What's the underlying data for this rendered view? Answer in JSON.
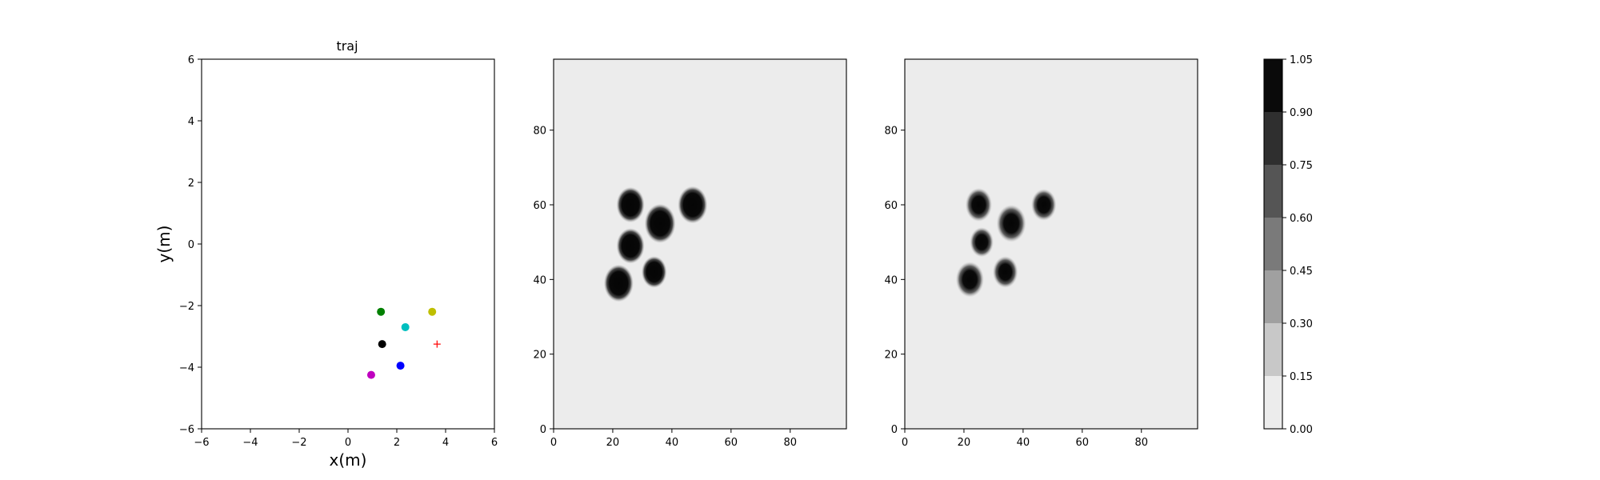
{
  "chart_data": [
    {
      "type": "scatter",
      "title": "traj",
      "xlabel": "x(m)",
      "ylabel": "y(m)",
      "xlim": [
        -6,
        6
      ],
      "ylim": [
        -6,
        6
      ],
      "xticks": [
        -6,
        -4,
        -2,
        0,
        2,
        4,
        6
      ],
      "yticks": [
        -6,
        -4,
        -2,
        0,
        2,
        4,
        6
      ],
      "grid": false,
      "points": [
        {
          "x": 1.35,
          "y": -2.2,
          "color": "#008000",
          "marker": "circle"
        },
        {
          "x": 3.45,
          "y": -2.2,
          "color": "#bfbf00",
          "marker": "circle"
        },
        {
          "x": 2.35,
          "y": -2.7,
          "color": "#00bfbf",
          "marker": "circle"
        },
        {
          "x": 1.4,
          "y": -3.25,
          "color": "#000000",
          "marker": "circle"
        },
        {
          "x": 2.15,
          "y": -3.95,
          "color": "#0000ff",
          "marker": "circle"
        },
        {
          "x": 0.95,
          "y": -4.25,
          "color": "#bf00bf",
          "marker": "circle"
        },
        {
          "x": 3.65,
          "y": -3.25,
          "color": "#ff0000",
          "marker": "plus"
        }
      ]
    },
    {
      "type": "heatmap",
      "title": "",
      "xlim": [
        0,
        99
      ],
      "ylim": [
        0,
        99
      ],
      "xticks": [
        0,
        20,
        40,
        60,
        80
      ],
      "yticks": [
        0,
        20,
        40,
        60,
        80
      ],
      "background_value": 0.0,
      "blobs": [
        {
          "x": 26,
          "y": 60,
          "r": 3.8
        },
        {
          "x": 47,
          "y": 60,
          "r": 4.0
        },
        {
          "x": 36,
          "y": 55,
          "r": 4.2
        },
        {
          "x": 26,
          "y": 49,
          "r": 3.8
        },
        {
          "x": 34,
          "y": 42,
          "r": 3.4
        },
        {
          "x": 22,
          "y": 39,
          "r": 4.0
        }
      ]
    },
    {
      "type": "heatmap",
      "title": "",
      "xlim": [
        0,
        99
      ],
      "ylim": [
        0,
        99
      ],
      "xticks": [
        0,
        20,
        40,
        60,
        80
      ],
      "yticks": [
        0,
        20,
        40,
        60,
        80
      ],
      "background_value": 0.0,
      "blobs": [
        {
          "x": 25,
          "y": 60,
          "r": 3.6
        },
        {
          "x": 47,
          "y": 60,
          "r": 3.4
        },
        {
          "x": 36,
          "y": 55,
          "r": 4.0
        },
        {
          "x": 26,
          "y": 50,
          "r": 3.2
        },
        {
          "x": 34,
          "y": 42,
          "r": 3.4
        },
        {
          "x": 22,
          "y": 40,
          "r": 3.8
        }
      ]
    }
  ],
  "colorbar": {
    "levels": [
      0.0,
      0.15,
      0.3,
      0.45,
      0.6,
      0.75,
      0.9,
      1.05
    ],
    "tick_labels": [
      "0.00",
      "0.15",
      "0.30",
      "0.45",
      "0.60",
      "0.75",
      "0.90",
      "1.05"
    ],
    "band_colors": [
      "#ececec",
      "#c8c8c8",
      "#a0a0a0",
      "#7a7a7a",
      "#555555",
      "#2f2f2f",
      "#0a0a0a"
    ]
  }
}
